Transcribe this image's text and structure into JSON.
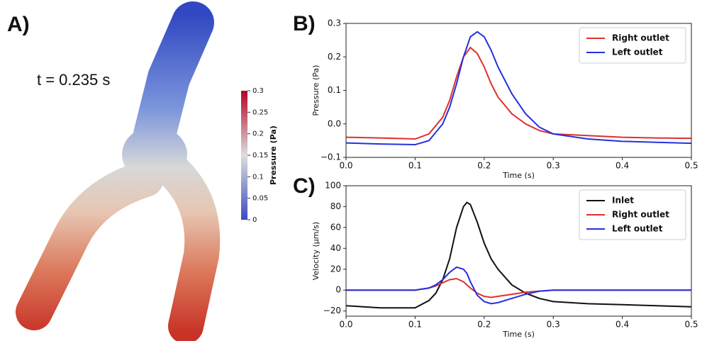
{
  "panel_a": {
    "label": "A)",
    "time": "t = 0.235 s",
    "colorbar": {
      "label": "Pressure (Pa)",
      "lim": [
        0,
        0.3
      ],
      "ticks": [
        0,
        0.05,
        0.1,
        0.15,
        0.2,
        0.25,
        0.3
      ]
    }
  },
  "chart_data": [
    {
      "type": "line",
      "panel": "B)",
      "x_label": "Time (s)",
      "y_label": "Pressure (Pa)",
      "legend": "upper right",
      "xlim": [
        0,
        0.5
      ],
      "xticks": [
        {
          "value": 0,
          "label": "0.0"
        },
        0.1,
        0.2,
        0.3,
        0.4,
        0.5
      ],
      "ylim": [
        -0.1,
        0.3
      ],
      "yticks": [
        {
          "value": -0.1,
          "label": "−0.1"
        },
        {
          "value": 0,
          "label": "0.0"
        },
        0.1,
        0.2,
        0.3
      ],
      "x": [
        0,
        0.05,
        0.1,
        0.12,
        0.14,
        0.15,
        0.16,
        0.17,
        0.18,
        0.19,
        0.2,
        0.21,
        0.22,
        0.24,
        0.26,
        0.28,
        0.3,
        0.35,
        0.4,
        0.45,
        0.5
      ],
      "series": [
        {
          "name": "Right outlet",
          "color": "#e0302c",
          "values": [
            -0.04,
            -0.042,
            -0.045,
            -0.03,
            0.02,
            0.07,
            0.14,
            0.2,
            0.228,
            0.21,
            0.17,
            0.12,
            0.08,
            0.03,
            0.0,
            -0.02,
            -0.03,
            -0.035,
            -0.04,
            -0.042,
            -0.043
          ]
        },
        {
          "name": "Left outlet",
          "color": "#2430e0",
          "values": [
            -0.057,
            -0.06,
            -0.062,
            -0.05,
            0.0,
            0.05,
            0.12,
            0.2,
            0.26,
            0.275,
            0.26,
            0.22,
            0.17,
            0.09,
            0.03,
            -0.01,
            -0.03,
            -0.045,
            -0.052,
            -0.055,
            -0.058
          ]
        }
      ]
    },
    {
      "type": "line",
      "panel": "C)",
      "x_label": "Time (s)",
      "y_label": "Velocity (μm/s)",
      "legend": "upper right",
      "xlim": [
        0,
        0.5
      ],
      "xticks": [
        {
          "value": 0,
          "label": "0.0"
        },
        0.1,
        0.2,
        0.3,
        0.4,
        0.5
      ],
      "ylim": [
        -25,
        100
      ],
      "yticks": [
        {
          "value": -20,
          "label": "−20"
        },
        0,
        20,
        40,
        60,
        80,
        100
      ],
      "x": [
        0,
        0.05,
        0.1,
        0.12,
        0.13,
        0.14,
        0.15,
        0.16,
        0.17,
        0.175,
        0.18,
        0.19,
        0.2,
        0.21,
        0.22,
        0.24,
        0.26,
        0.28,
        0.3,
        0.35,
        0.4,
        0.45,
        0.5
      ],
      "series": [
        {
          "name": "Inlet",
          "color": "#111111",
          "values": [
            -15,
            -17,
            -17,
            -10,
            -3,
            10,
            30,
            60,
            80,
            84,
            82,
            65,
            45,
            30,
            20,
            5,
            -3,
            -8,
            -11,
            -13,
            -14,
            -15,
            -16
          ]
        },
        {
          "name": "Right outlet",
          "color": "#e0302c",
          "values": [
            0,
            0,
            0,
            2,
            4,
            7,
            10,
            11,
            8,
            5,
            2,
            -3,
            -6,
            -7,
            -6,
            -4,
            -2,
            -1,
            0,
            0,
            0,
            0,
            0
          ]
        },
        {
          "name": "Left outlet",
          "color": "#2430e0",
          "values": [
            0,
            0,
            0,
            2,
            5,
            10,
            17,
            22,
            20,
            16,
            8,
            -5,
            -11,
            -13,
            -12,
            -8,
            -4,
            -1,
            0,
            0,
            0,
            0,
            0
          ]
        }
      ]
    }
  ]
}
